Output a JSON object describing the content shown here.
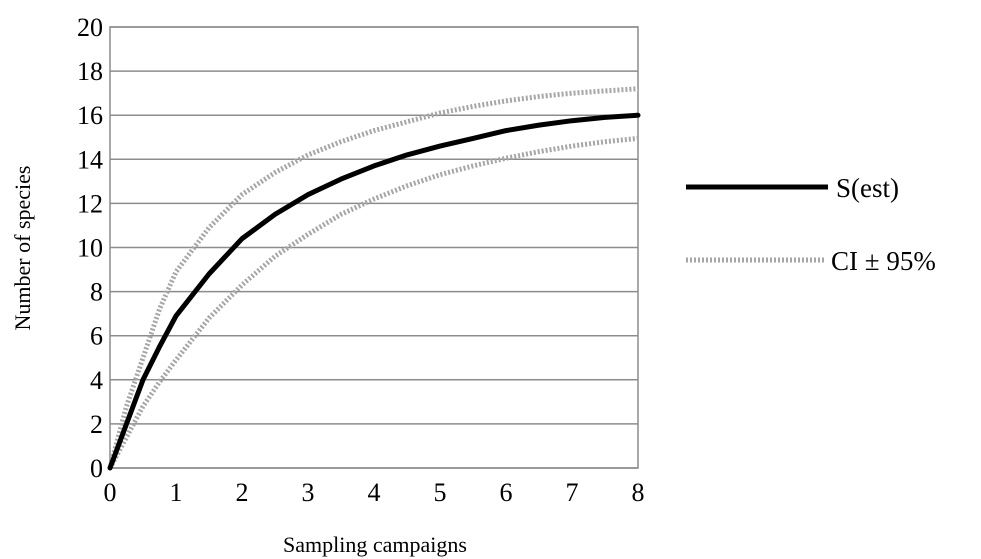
{
  "chart_data": {
    "type": "line",
    "xlabel": "Sampling campaigns",
    "ylabel": "Number of species",
    "xlim": [
      0,
      8
    ],
    "ylim": [
      0,
      20
    ],
    "x_ticks": [
      0,
      1,
      2,
      3,
      4,
      5,
      6,
      7,
      8
    ],
    "y_ticks": [
      0,
      2,
      4,
      6,
      8,
      10,
      12,
      14,
      16,
      18,
      20
    ],
    "grid": "horizontal",
    "legend": "right",
    "series": [
      {
        "name": "S(est)",
        "style": "solid",
        "color": "#000000",
        "x": [
          0,
          0.25,
          0.5,
          0.75,
          1,
          1.5,
          2,
          2.5,
          3,
          3.5,
          4,
          4.5,
          5,
          5.5,
          6,
          6.5,
          7,
          7.5,
          8
        ],
        "y": [
          0,
          2,
          4,
          5.5,
          6.9,
          8.8,
          10.4,
          11.5,
          12.4,
          13.1,
          13.7,
          14.2,
          14.6,
          14.95,
          15.3,
          15.55,
          15.75,
          15.9,
          16.0
        ]
      },
      {
        "name": "CI ± 95%",
        "label": "CI ± 95%",
        "style": "dotted",
        "color": "#a6a6a6",
        "x": [
          0,
          0.25,
          0.5,
          0.75,
          1,
          1.5,
          2,
          2.5,
          3,
          3.5,
          4,
          4.5,
          5,
          5.5,
          6,
          6.5,
          7,
          7.5,
          8
        ],
        "upper": [
          0,
          2.8,
          5.0,
          7.2,
          8.9,
          10.9,
          12.4,
          13.4,
          14.2,
          14.8,
          15.3,
          15.7,
          16.1,
          16.4,
          16.65,
          16.85,
          17.0,
          17.1,
          17.2
        ],
        "lower": [
          0,
          1.4,
          2.8,
          3.9,
          4.9,
          6.8,
          8.3,
          9.6,
          10.6,
          11.5,
          12.2,
          12.8,
          13.3,
          13.7,
          14.05,
          14.35,
          14.6,
          14.8,
          14.95
        ]
      }
    ]
  }
}
